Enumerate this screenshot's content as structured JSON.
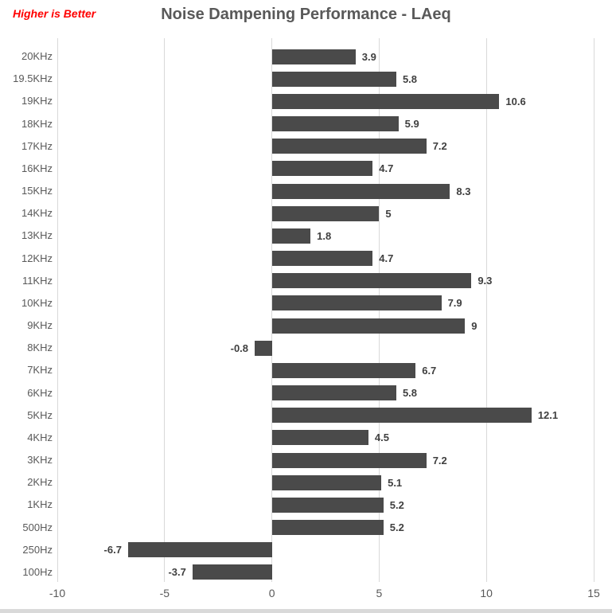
{
  "annotation": {
    "text": "Higher is Better",
    "color": "#FF0000"
  },
  "chart_data": {
    "type": "bar",
    "orientation": "horizontal",
    "title": "Noise Dampening Performance - LAeq",
    "categories": [
      "20KHz",
      "19.5KHz",
      "19KHz",
      "18KHz",
      "17KHz",
      "16KHz",
      "15KHz",
      "14KHz",
      "13KHz",
      "12KHz",
      "11KHz",
      "10KHz",
      "9KHz",
      "8KHz",
      "7KHz",
      "6KHz",
      "5KHz",
      "4KHz",
      "3KHz",
      "2KHz",
      "1KHz",
      "500Hz",
      "250Hz",
      "100Hz"
    ],
    "values": [
      3.9,
      5.8,
      10.6,
      5.9,
      7.2,
      4.7,
      8.3,
      5,
      1.8,
      4.7,
      9.3,
      7.9,
      9,
      -0.8,
      6.7,
      5.8,
      12.1,
      4.5,
      7.2,
      5.1,
      5.2,
      5.2,
      -6.7,
      -3.7
    ],
    "value_labels": [
      "3.9",
      "5.8",
      "10.6",
      "5.9",
      "7.2",
      "4.7",
      "8.3",
      "5",
      "1.8",
      "4.7",
      "9.3",
      "7.9",
      "9",
      "-0.8",
      "6.7",
      "5.8",
      "12.1",
      "4.5",
      "7.2",
      "5.1",
      "5.2",
      "5.2",
      "-6.7",
      "-3.7"
    ],
    "x_ticks": [
      "-10",
      "-5",
      "0",
      "5",
      "10",
      "15"
    ],
    "x_tick_values": [
      -10,
      -5,
      0,
      5,
      10,
      15
    ],
    "xlim": [
      -10,
      15
    ],
    "grid": true,
    "legend": "none",
    "colors": {
      "bar": "#4A4A4A",
      "gridline": "#D9D9D9",
      "axis_text": "#595959",
      "value_label_text": "#3F3F3F",
      "title_text": "#595959",
      "bottom_border": "#D9D9D9"
    }
  }
}
